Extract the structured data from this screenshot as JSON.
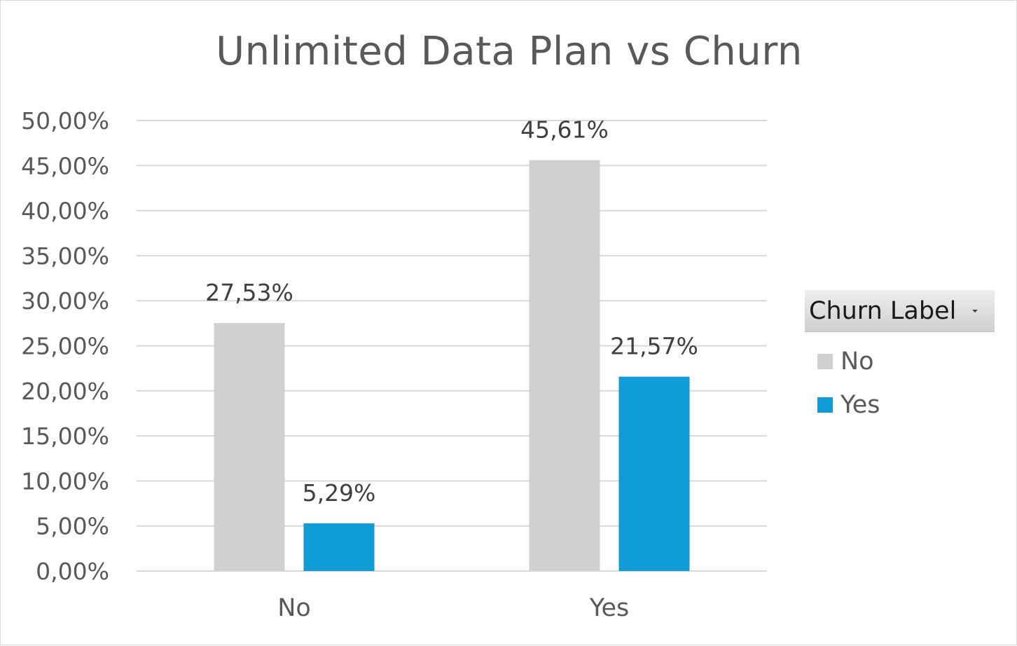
{
  "chart_data": {
    "type": "bar",
    "title": "Unlimited Data Plan vs Churn",
    "xlabel": "",
    "ylabel": "",
    "categories": [
      "No",
      "Yes"
    ],
    "series": [
      {
        "name": "No",
        "color": "#d0d0d0",
        "values": [
          27.53,
          45.61
        ],
        "labels": [
          "27,53%",
          "45,61%"
        ]
      },
      {
        "name": "Yes",
        "color": "#109cd6",
        "values": [
          5.29,
          21.57
        ],
        "labels": [
          "5,29%",
          "21,57%"
        ]
      }
    ],
    "ylim": [
      0,
      50
    ],
    "yticks": [
      0,
      5,
      10,
      15,
      20,
      25,
      30,
      35,
      40,
      45,
      50
    ],
    "ytick_labels": [
      "0,00%",
      "5,00%",
      "10,00%",
      "15,00%",
      "20,00%",
      "25,00%",
      "30,00%",
      "35,00%",
      "40,00%",
      "45,00%",
      "50,00%"
    ],
    "grid": true,
    "legend": {
      "title": "Churn Label",
      "placement": "right",
      "items": [
        "No",
        "Yes"
      ]
    }
  }
}
